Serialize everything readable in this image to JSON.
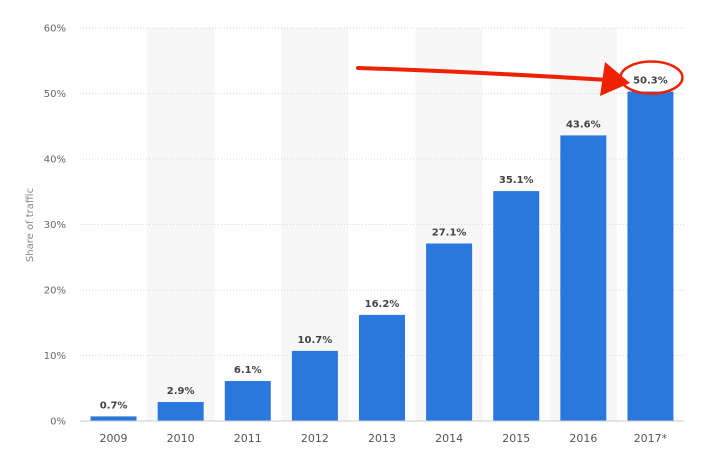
{
  "chart_data": {
    "type": "bar",
    "ylabel": "Share of traffic",
    "xlabel": "",
    "ylim": [
      0,
      60
    ],
    "y_ticks": [
      "0%",
      "10%",
      "20%",
      "30%",
      "40%",
      "50%",
      "60%"
    ],
    "y_tick_values": [
      0,
      10,
      20,
      30,
      40,
      50,
      60
    ],
    "categories": [
      "2009",
      "2010",
      "2011",
      "2012",
      "2013",
      "2014",
      "2015",
      "2016",
      "2017*"
    ],
    "values": [
      0.7,
      2.9,
      6.1,
      10.7,
      16.2,
      27.1,
      35.1,
      43.6,
      50.3
    ],
    "data_labels": [
      "0.7%",
      "2.9%",
      "6.1%",
      "10.7%",
      "16.2%",
      "27.1%",
      "35.1%",
      "43.6%",
      "50.3%"
    ],
    "grid": true,
    "bar_color": "#2a77dd",
    "highlight": {
      "category_index": 8,
      "arrow_color": "#ee2200"
    }
  }
}
